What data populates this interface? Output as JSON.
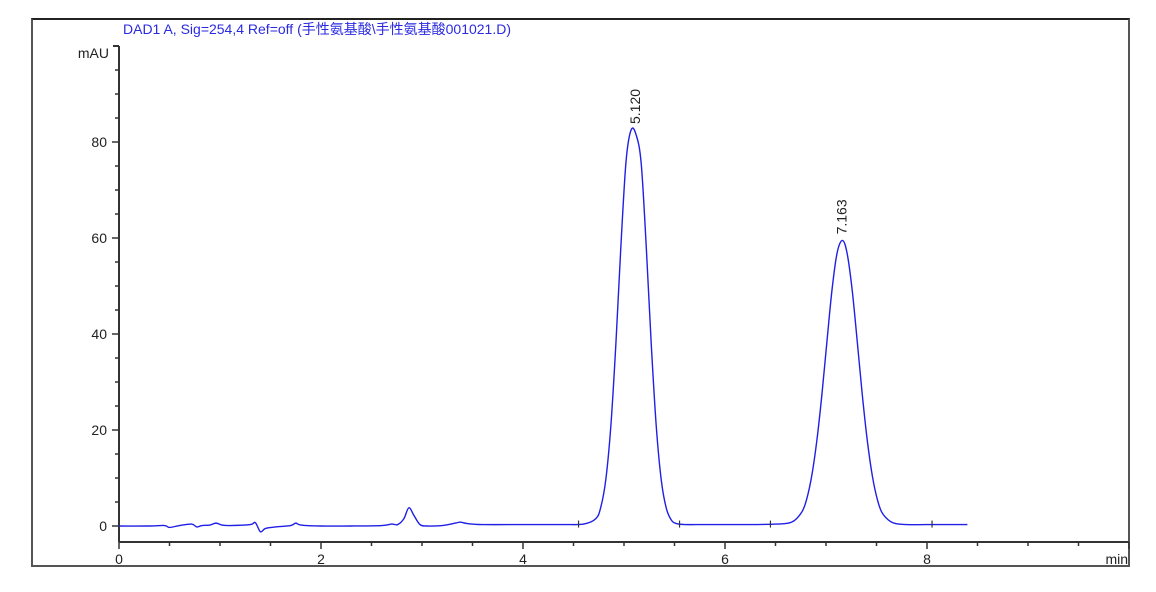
{
  "chart_data": {
    "type": "line",
    "title": "DAD1 A, Sig=254,4 Ref=off (手性氨基酸\\手性氨基酸001021.D)",
    "xlabel": "min",
    "ylabel": "mAU",
    "xlim": [
      0,
      10
    ],
    "ylim": [
      -3,
      100
    ],
    "x_ticks": [
      0,
      2,
      4,
      6,
      8
    ],
    "y_ticks": [
      0,
      20,
      40,
      60,
      80
    ],
    "grid": false,
    "line_color": "#1f1fe6",
    "title_color": "#2a2ae0",
    "peak_labels": [
      {
        "x": 5.12,
        "y": 82.5,
        "label": "5.120"
      },
      {
        "x": 7.163,
        "y": 59.5,
        "label": "7.163"
      }
    ],
    "series": [
      {
        "x": [
          0,
          0.3,
          0.45,
          0.5,
          0.6,
          0.72,
          0.77,
          0.82,
          0.9,
          0.96,
          1.02,
          1.1,
          1.3,
          1.35,
          1.4,
          1.45,
          1.55,
          1.7,
          1.75,
          1.8,
          2.0,
          2.3,
          2.6,
          2.7,
          2.76,
          2.82,
          2.87,
          2.92,
          2.98,
          3.05,
          3.2,
          3.33,
          3.38,
          3.45,
          3.6,
          4.0,
          4.4,
          4.6,
          4.72,
          4.77,
          4.82,
          4.87,
          4.92,
          4.97,
          5.02,
          5.07,
          5.12,
          5.17,
          5.22,
          5.27,
          5.32,
          5.37,
          5.42,
          5.47,
          5.52,
          5.6,
          5.8,
          6.2,
          6.5,
          6.66,
          6.76,
          6.81,
          6.86,
          6.91,
          6.96,
          7.01,
          7.06,
          7.11,
          7.163,
          7.21,
          7.26,
          7.31,
          7.36,
          7.41,
          7.46,
          7.51,
          7.56,
          7.66,
          7.8,
          8.0,
          8.4
        ],
        "y": [
          0,
          0,
          0.1,
          -0.3,
          0.1,
          0.4,
          -0.2,
          0.1,
          0.2,
          0.6,
          0.2,
          0.1,
          0.3,
          0.7,
          -1.2,
          -0.5,
          -0.2,
          0.1,
          0.6,
          0.2,
          0,
          0,
          0.1,
          0.4,
          0.3,
          1.5,
          3.8,
          2.2,
          0.3,
          0,
          0.1,
          0.6,
          0.8,
          0.5,
          0.3,
          0.3,
          0.3,
          0.4,
          1.5,
          3.9,
          9.7,
          20.9,
          38.1,
          58.6,
          75.9,
          82.5,
          81.5,
          75.6,
          58.3,
          37.8,
          20.6,
          9.4,
          3.6,
          1.2,
          0.5,
          0.3,
          0.3,
          0.3,
          0.4,
          0.8,
          2.9,
          5.7,
          10.6,
          17.9,
          27.5,
          38.6,
          49.3,
          56.9,
          59.5,
          56.7,
          49,
          38.3,
          27.2,
          17.6,
          10.3,
          5.4,
          2.6,
          0.7,
          0.3,
          0.3,
          0.3
        ]
      }
    ]
  }
}
